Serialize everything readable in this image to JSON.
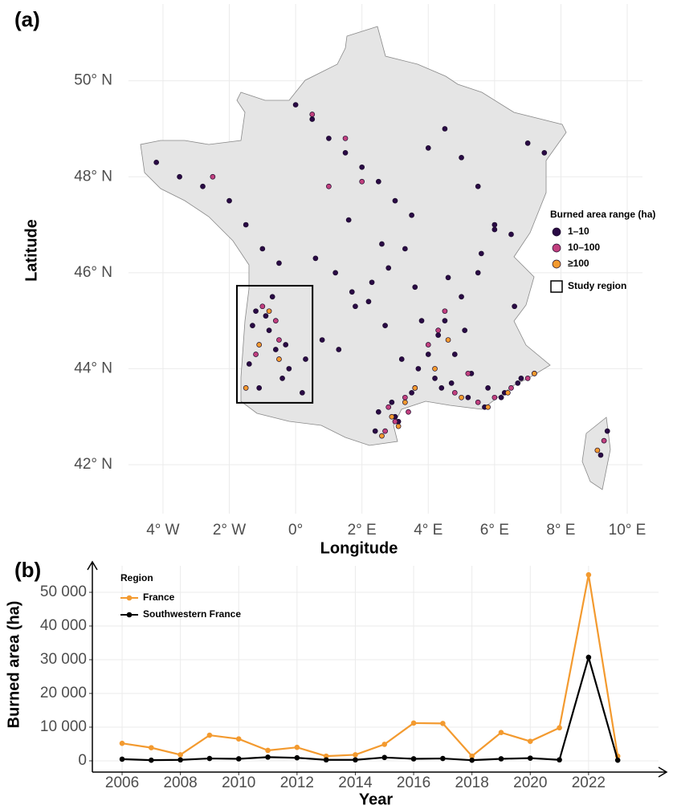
{
  "chart_data": [
    {
      "type": "map",
      "label": "(a)",
      "xlabel": "Longitude",
      "ylabel": "Latitude",
      "xlim": [
        -5.04,
        10.46
      ],
      "ylim": [
        40.98,
        51.6
      ],
      "xticks": [
        {
          "value": -4,
          "label": "4° W"
        },
        {
          "value": -2,
          "label": "2° W"
        },
        {
          "value": 0,
          "label": "0°"
        },
        {
          "value": 2,
          "label": "2° E"
        },
        {
          "value": 4,
          "label": "4° E"
        },
        {
          "value": 6,
          "label": "6° E"
        },
        {
          "value": 8,
          "label": "8° E"
        },
        {
          "value": 10,
          "label": "10° E"
        }
      ],
      "yticks": [
        {
          "value": 42,
          "label": "42° N"
        },
        {
          "value": 44,
          "label": "44° N"
        },
        {
          "value": 46,
          "label": "46° N"
        },
        {
          "value": 48,
          "label": "48° N"
        },
        {
          "value": 50,
          "label": "50° N"
        }
      ],
      "grid": true,
      "legend": "right",
      "legend_title": "Burned area range (ha)",
      "series": [
        {
          "name": "1–10",
          "color": "#2a0a45",
          "x": [
            -4.2,
            -3.5,
            -2.8,
            -2.0,
            -1.5,
            -1.0,
            -0.5,
            0.0,
            0.5,
            1.0,
            1.5,
            2.0,
            2.5,
            3.0,
            3.5,
            4.0,
            4.5,
            5.0,
            5.5,
            6.0,
            6.5,
            7.0,
            7.5,
            -1.2,
            -0.8,
            -0.3,
            0.3,
            0.8,
            1.3,
            1.8,
            2.3,
            2.8,
            3.3,
            3.8,
            4.3,
            4.8,
            5.3,
            5.8,
            6.3,
            6.8,
            -1.4,
            -1.1,
            -0.7,
            -0.2,
            0.2,
            -1.3,
            -0.9,
            -0.4,
            1.2,
            1.7,
            2.2,
            2.7,
            3.2,
            3.7,
            4.2,
            4.7,
            5.2,
            5.7,
            6.2,
            6.7,
            7.2,
            2.5,
            3.0,
            3.5,
            4.0,
            4.5,
            5.0,
            5.5,
            6.0,
            9.2,
            9.4,
            -0.6,
            0.6,
            1.6,
            2.6,
            3.6,
            4.6,
            5.6,
            6.6,
            3.1,
            2.4,
            2.9,
            4.4,
            5.1
          ],
          "y": [
            48.3,
            48.0,
            47.8,
            47.5,
            47.0,
            46.5,
            46.2,
            49.5,
            49.2,
            48.8,
            48.5,
            48.2,
            47.9,
            47.5,
            47.2,
            48.6,
            49.0,
            48.4,
            47.8,
            47.0,
            46.8,
            48.7,
            48.5,
            45.2,
            44.8,
            44.5,
            44.2,
            44.6,
            44.4,
            45.3,
            45.8,
            46.1,
            46.5,
            45.0,
            44.7,
            44.3,
            43.9,
            43.6,
            43.5,
            43.8,
            44.1,
            43.6,
            45.5,
            44.0,
            43.5,
            44.9,
            45.1,
            43.8,
            46.0,
            45.6,
            45.4,
            44.9,
            44.2,
            44.0,
            43.8,
            43.7,
            43.4,
            43.2,
            43.4,
            43.7,
            43.9,
            43.1,
            43.0,
            43.5,
            44.3,
            45.0,
            45.5,
            46.0,
            46.9,
            42.2,
            42.7,
            44.4,
            46.3,
            47.1,
            46.6,
            45.7,
            45.9,
            46.4,
            45.3,
            42.9,
            42.7,
            43.3,
            43.6,
            44.8
          ]
        },
        {
          "name": "10–100",
          "color": "#c2407f",
          "x": [
            -1.0,
            -0.5,
            0.5,
            1.5,
            2.8,
            3.0,
            3.3,
            3.6,
            4.0,
            4.3,
            4.8,
            5.5,
            6.0,
            6.5,
            7.0,
            -1.2,
            -0.6,
            2.7,
            3.4,
            4.5,
            5.2,
            9.3,
            1.0,
            -2.5,
            2.0
          ],
          "y": [
            45.3,
            44.6,
            49.3,
            48.8,
            43.2,
            42.9,
            43.4,
            43.6,
            44.5,
            44.8,
            43.5,
            43.3,
            43.4,
            43.6,
            43.8,
            44.3,
            45.0,
            42.7,
            43.1,
            45.2,
            43.9,
            42.5,
            47.8,
            48.0,
            47.9
          ]
        },
        {
          "name": "≥100",
          "color": "#f39a2f",
          "x": [
            -1.1,
            -0.8,
            2.9,
            3.1,
            3.3,
            3.6,
            4.2,
            5.0,
            5.8,
            6.4,
            7.2,
            -0.5,
            2.6,
            9.1,
            4.6,
            -1.5
          ],
          "y": [
            44.5,
            45.2,
            43.0,
            42.8,
            43.3,
            43.6,
            44.0,
            43.4,
            43.2,
            43.5,
            43.9,
            44.2,
            42.6,
            42.3,
            44.6,
            43.6
          ]
        }
      ],
      "study_region": {
        "name": "Study region",
        "xlim": [
          -1.77,
          0.51
        ],
        "ylim": [
          43.29,
          45.73
        ]
      }
    },
    {
      "type": "line",
      "label": "(b)",
      "xlabel": "Year",
      "ylabel": "Burned area (ha)",
      "xlim": [
        2004.98,
        2024.4
      ],
      "ylim": [
        -3333,
        57857
      ],
      "xticks": [
        2006,
        2008,
        2010,
        2012,
        2014,
        2016,
        2018,
        2020,
        2022
      ],
      "yticks": [
        0,
        {
          "value": 10000,
          "label": "10 000"
        },
        {
          "value": 20000,
          "label": "20 000"
        },
        {
          "value": 30000,
          "label": "30 000"
        },
        {
          "value": 40000,
          "label": "40 000"
        },
        {
          "value": 50000,
          "label": "50 000"
        }
      ],
      "grid": true,
      "legend": "upper left",
      "legend_title": "Region",
      "x": [
        2006,
        2007,
        2008,
        2009,
        2010,
        2011,
        2012,
        2013,
        2014,
        2015,
        2016,
        2017,
        2018,
        2019,
        2020,
        2021,
        2022,
        2023
      ],
      "series": [
        {
          "name": "France",
          "color": "#f39a2f",
          "values": [
            5200,
            3900,
            1800,
            7600,
            6500,
            3100,
            4000,
            1400,
            1800,
            4900,
            11200,
            11100,
            1400,
            8400,
            5800,
            9800,
            55200,
            1400
          ]
        },
        {
          "name": "Southwestern France",
          "color": "#000000",
          "values": [
            500,
            200,
            300,
            700,
            600,
            1100,
            900,
            300,
            300,
            1000,
            600,
            700,
            200,
            600,
            800,
            300,
            30700,
            200
          ]
        }
      ]
    }
  ]
}
